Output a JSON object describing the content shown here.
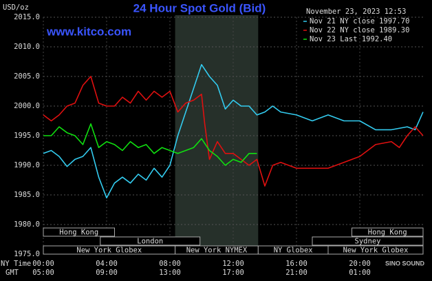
{
  "chart_data": {
    "type": "line",
    "title": "24 Hour Spot Gold (Bid)",
    "y_label": "USD/oz",
    "timestamp": "November 23, 2023 12:53",
    "website": "www.kitco.com",
    "x_row_label": "NY Time",
    "gmt_row_label": "GMT",
    "watermark": "SINO SOUND",
    "xlim": [
      0,
      24
    ],
    "xticks": [
      {
        "value": 0,
        "label": "00:00"
      },
      {
        "value": 4,
        "label": "04:00"
      },
      {
        "value": 8,
        "label": "08:00"
      },
      {
        "value": 12,
        "label": "12:00"
      },
      {
        "value": 16,
        "label": "16:00"
      },
      {
        "value": 20,
        "label": "20:00"
      }
    ],
    "gmt_ticks": [
      {
        "value": 0,
        "label": "05:00"
      },
      {
        "value": 4,
        "label": "09:00"
      },
      {
        "value": 8,
        "label": "13:00"
      },
      {
        "value": 12,
        "label": "17:00"
      },
      {
        "value": 16,
        "label": "21:00"
      },
      {
        "value": 20,
        "label": "01:00"
      }
    ],
    "ylim": [
      1975,
      2015
    ],
    "yticks": [
      {
        "value": 1975,
        "label": "1975.0"
      },
      {
        "value": 1980,
        "label": "1980.0"
      },
      {
        "value": 1985,
        "label": "1985.0"
      },
      {
        "value": 1990,
        "label": "1990.0"
      },
      {
        "value": 1995,
        "label": "1995.0"
      },
      {
        "value": 2000,
        "label": "2000.0"
      },
      {
        "value": 2005,
        "label": "2005.0"
      },
      {
        "value": 2010,
        "label": "2010.0"
      },
      {
        "value": 2015,
        "label": "2015.0"
      }
    ],
    "grid": true,
    "sessions": [
      {
        "label": "Hong Kong",
        "row": 0,
        "start": 0,
        "end": 4.5
      },
      {
        "label": "Hong Kong",
        "row": 0,
        "start": 19.5,
        "end": 24
      },
      {
        "label": "London",
        "row": 1,
        "start": 3.6,
        "end": 9.9
      },
      {
        "label": "Sydney",
        "row": 1,
        "start": 17,
        "end": 24
      },
      {
        "label": "New York Globex",
        "row": 2,
        "start": 0,
        "end": 8.33
      },
      {
        "label": "New York NYMEX",
        "row": 2,
        "start": 8.33,
        "end": 13.58,
        "highlight": true
      },
      {
        "label": "NY Globex",
        "row": 2,
        "start": 13.58,
        "end": 18
      },
      {
        "label": "New York Globex",
        "row": 2,
        "start": 18,
        "end": 24
      }
    ],
    "series": [
      {
        "name": "Nov 21 NY close 1997.70",
        "color": "#33ccf0",
        "x": [
          0,
          0.5,
          1,
          1.5,
          2,
          2.5,
          3,
          3.5,
          4,
          4.5,
          5,
          5.5,
          6,
          6.5,
          7,
          7.5,
          8,
          8.5,
          9,
          9.5,
          10,
          10.5,
          11,
          11.5,
          12,
          12.5,
          13,
          13.5,
          14,
          14.5,
          15,
          16,
          17,
          18,
          19,
          20,
          21,
          22,
          23,
          23.5,
          24
        ],
        "values": [
          1992,
          1992.5,
          1991.5,
          1989.8,
          1991,
          1991.5,
          1993,
          1988,
          1984.5,
          1987,
          1988,
          1987,
          1988.5,
          1987.5,
          1989.5,
          1988,
          1990,
          1995,
          1999,
          2003,
          2007,
          2005,
          2003.5,
          1999.5,
          2001,
          2000,
          2000,
          1998.5,
          1999,
          2000,
          1999,
          1998.5,
          1997.5,
          1998.5,
          1997.5,
          1997.5,
          1996,
          1996,
          1996.5,
          1996,
          1999
        ]
      },
      {
        "name": "Nov 22 NY close 1989.30",
        "color": "#e01010",
        "x": [
          0,
          0.5,
          1,
          1.5,
          2,
          2.5,
          3,
          3.5,
          4,
          4.5,
          5,
          5.5,
          6,
          6.5,
          7,
          7.5,
          8,
          8.5,
          9,
          9.5,
          10,
          10.2,
          10.5,
          11,
          11.5,
          12,
          12.5,
          13,
          13.5,
          14,
          14.5,
          15,
          16,
          17,
          18,
          19,
          20,
          21,
          22,
          22.5,
          23,
          23.5,
          24
        ],
        "values": [
          1998.5,
          1997.5,
          1998.5,
          2000,
          2000.5,
          2003.5,
          2005,
          2000.5,
          2000,
          2000,
          2001.5,
          2000.5,
          2002.5,
          2001,
          2002.5,
          2001.5,
          2002.5,
          1999,
          2000.5,
          2001,
          2002,
          1997,
          1991,
          1994,
          1992,
          1992,
          1991,
          1990,
          1991,
          1986.5,
          1990,
          1990.5,
          1989.5,
          1989.5,
          1989.5,
          1990.5,
          1991.5,
          1993.5,
          1994,
          1993,
          1995,
          1996.5,
          1995
        ]
      },
      {
        "name": "Nov 23 Last 1992.40",
        "color": "#10e010",
        "x": [
          0,
          0.5,
          1,
          1.5,
          2,
          2.5,
          3,
          3.5,
          4,
          4.5,
          5,
          5.5,
          6,
          6.5,
          7,
          7.5,
          8,
          8.5,
          9,
          9.5,
          10,
          10.5,
          11,
          11.5,
          12,
          12.5,
          13,
          13.5
        ],
        "values": [
          1995,
          1995,
          1996.5,
          1995.5,
          1995,
          1993.5,
          1997,
          1993,
          1994,
          1993.5,
          1992.5,
          1994,
          1993,
          1993.5,
          1992,
          1993,
          1992.5,
          1992,
          1992.5,
          1993,
          1994.5,
          1992.5,
          1991.5,
          1990,
          1991,
          1990.5,
          1992,
          1992
        ]
      }
    ]
  }
}
